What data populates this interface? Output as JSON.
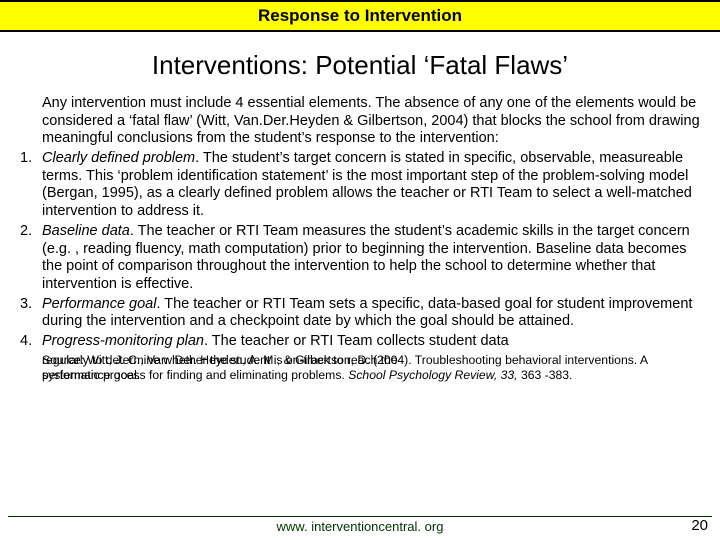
{
  "header": "Response to Intervention",
  "title": "Interventions: Potential ‘Fatal Flaws’",
  "intro": "Any intervention must include 4 essential elements. The absence of any one of the elements would be considered a ‘fatal flaw’ (Witt, Van.Der.Heyden & Gilbertson, 2004) that blocks the school from drawing meaningful conclusions from the student’s response to the intervention:",
  "items": [
    {
      "num": "1.",
      "label": "Clearly defined problem",
      "text": ". The student’s target concern is stated in specific, observable, measureable terms. This ‘problem identification statement’ is the most important step of the problem-solving model (Bergan, 1995), as a clearly defined problem allows the teacher or RTI Team to select a well-matched intervention to address it."
    },
    {
      "num": "2.",
      "label": "Baseline data",
      "text": ". The teacher or RTI Team measures the student’s academic skills in the target concern (e.g. , reading fluency, math computation) prior to beginning the intervention. Baseline data becomes the point of comparison throughout the intervention to help the school to determine whether that intervention is effective."
    },
    {
      "num": "3.",
      "label": "Performance goal",
      "text": ". The teacher or RTI Team sets a specific, data-based goal for student improvement during the intervention and a checkpoint date by which the goal should be attained."
    },
    {
      "num": "4.",
      "label": "Progress-monitoring plan",
      "text": ". The teacher or RTI Team collects student data"
    }
  ],
  "overlap": {
    "back": "regularly to determine whether the student is on-track to reach the",
    "back2": "performance goal.",
    "front": "Source: Witt, J. C., Van. Der. Heyden, A. M., & Gilbertson, D. (2004). Troubleshooting behavioral interventions. A systematic process for finding and eliminating problems. School Psychology Review, 33, 363 -383."
  },
  "footer": "www. interventioncentral. org",
  "page": "20"
}
